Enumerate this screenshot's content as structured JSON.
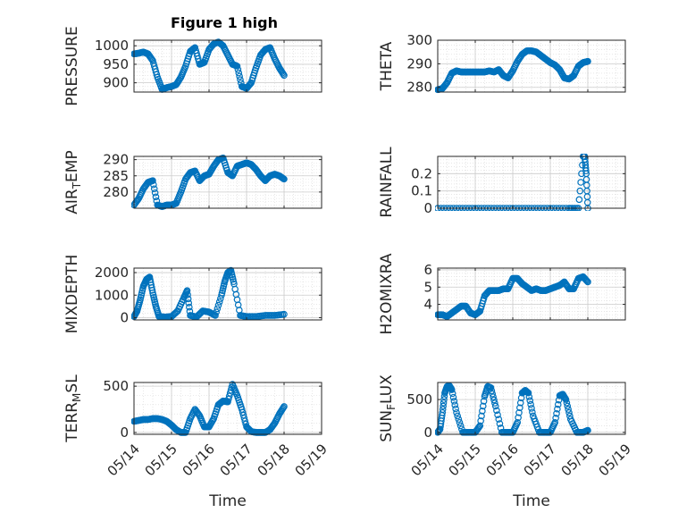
{
  "figure": {
    "title": "Figure 1 high"
  },
  "chart_data": [
    {
      "type": "scatter",
      "ylabel": "PRESSURE",
      "xlabel": "",
      "xlim": [
        "05/14",
        "05/19"
      ],
      "ylim": [
        875,
        1015
      ],
      "yticks": [
        900,
        950,
        1000
      ],
      "xtick_labels": [],
      "grid": true,
      "marker": "open circle",
      "color": "#0072BD",
      "x": [
        "05/14 00:00",
        "05/14 03:00",
        "05/14 06:00",
        "05/14 09:00",
        "05/14 12:00",
        "05/14 15:00",
        "05/14 18:00",
        "05/14 21:00",
        "05/15 00:00",
        "05/15 03:00",
        "05/15 06:00",
        "05/15 09:00",
        "05/15 12:00",
        "05/15 15:00",
        "05/15 18:00",
        "05/15 21:00",
        "05/16 00:00",
        "05/16 03:00",
        "05/16 06:00",
        "05/16 09:00",
        "05/16 12:00",
        "05/16 15:00",
        "05/16 18:00",
        "05/16 21:00",
        "05/17 00:00",
        "05/17 03:00",
        "05/17 06:00",
        "05/17 09:00",
        "05/17 12:00",
        "05/17 15:00",
        "05/17 18:00",
        "05/17 21:00",
        "05/18 00:00"
      ],
      "y": [
        978,
        980,
        983,
        978,
        960,
        915,
        882,
        887,
        890,
        895,
        915,
        945,
        985,
        995,
        950,
        955,
        990,
        1005,
        1010,
        1000,
        975,
        950,
        945,
        890,
        885,
        900,
        940,
        975,
        990,
        995,
        965,
        940,
        920
      ]
    },
    {
      "type": "scatter",
      "ylabel": "THETA",
      "xlabel": "",
      "xlim": [
        "05/14",
        "05/19"
      ],
      "ylim": [
        278,
        300
      ],
      "yticks": [
        280,
        290,
        300
      ],
      "xtick_labels": [],
      "grid": true,
      "marker": "open circle",
      "color": "#0072BD",
      "x": [
        "05/14 00:00",
        "05/14 03:00",
        "05/14 06:00",
        "05/14 09:00",
        "05/14 12:00",
        "05/14 15:00",
        "05/14 18:00",
        "05/14 21:00",
        "05/15 00:00",
        "05/15 03:00",
        "05/15 06:00",
        "05/15 09:00",
        "05/15 12:00",
        "05/15 15:00",
        "05/15 18:00",
        "05/15 21:00",
        "05/16 00:00",
        "05/16 03:00",
        "05/16 06:00",
        "05/16 09:00",
        "05/16 12:00",
        "05/16 15:00",
        "05/16 18:00",
        "05/16 21:00",
        "05/17 00:00",
        "05/17 03:00",
        "05/17 06:00",
        "05/17 09:00",
        "05/17 12:00",
        "05/17 15:00",
        "05/17 18:00",
        "05/17 21:00",
        "05/18 00:00"
      ],
      "y": [
        279,
        279.5,
        282,
        286,
        287,
        286.5,
        286.5,
        286.5,
        286.5,
        286.5,
        286.5,
        287,
        286.5,
        287.5,
        285,
        284,
        287,
        291,
        294,
        295.5,
        295.5,
        295,
        293.5,
        292,
        290.5,
        289.5,
        287.5,
        284,
        283.5,
        285,
        289,
        290.5,
        291
      ]
    },
    {
      "type": "scatter",
      "ylabel": "AIR_TEMP",
      "xlabel": "",
      "xlim": [
        "05/14",
        "05/19"
      ],
      "ylim": [
        275,
        291
      ],
      "yticks": [
        280,
        285,
        290
      ],
      "xtick_labels": [],
      "grid": true,
      "marker": "open circle",
      "color": "#0072BD",
      "x": [
        "05/14 00:00",
        "05/14 03:00",
        "05/14 06:00",
        "05/14 09:00",
        "05/14 12:00",
        "05/14 15:00",
        "05/14 18:00",
        "05/14 21:00",
        "05/15 00:00",
        "05/15 03:00",
        "05/15 06:00",
        "05/15 09:00",
        "05/15 12:00",
        "05/15 15:00",
        "05/15 18:00",
        "05/15 21:00",
        "05/16 00:00",
        "05/16 03:00",
        "05/16 06:00",
        "05/16 09:00",
        "05/16 12:00",
        "05/16 15:00",
        "05/16 18:00",
        "05/16 21:00",
        "05/17 00:00",
        "05/17 03:00",
        "05/17 06:00",
        "05/17 09:00",
        "05/17 12:00",
        "05/17 15:00",
        "05/17 18:00",
        "05/17 21:00",
        "05/18 00:00"
      ],
      "y": [
        276,
        278,
        281,
        283,
        283.5,
        276,
        275.5,
        276,
        276,
        276.5,
        280,
        284,
        286,
        286.5,
        283.5,
        285,
        285.5,
        288,
        290,
        290.5,
        286,
        285,
        288,
        288.5,
        289,
        288.5,
        287,
        285,
        283.5,
        285,
        285.5,
        285,
        284
      ]
    },
    {
      "type": "scatter",
      "ylabel": "RAINFALL",
      "xlabel": "",
      "xlim": [
        "05/14",
        "05/19"
      ],
      "ylim": [
        0,
        0.3
      ],
      "yticks": [
        0,
        0.1,
        0.2
      ],
      "xtick_labels": [],
      "grid": true,
      "marker": "open circle",
      "color": "#0072BD",
      "x": [
        "05/14 00:00",
        "05/14 12:00",
        "05/15 00:00",
        "05/15 12:00",
        "05/16 00:00",
        "05/16 12:00",
        "05/17 00:00",
        "05/17 12:00",
        "05/17 18:00",
        "05/17 21:00",
        "05/17 22:00",
        "05/17 23:00",
        "05/18 00:00"
      ],
      "y": [
        0,
        0,
        0,
        0,
        0,
        0,
        0,
        0,
        0,
        0.3,
        0.3,
        0.2,
        0
      ]
    },
    {
      "type": "scatter",
      "ylabel": "MIXDEPTH",
      "xlabel": "",
      "xlim": [
        "05/14",
        "05/19"
      ],
      "ylim": [
        -100,
        2200
      ],
      "yticks": [
        0,
        1000,
        2000
      ],
      "xtick_labels": [],
      "grid": true,
      "marker": "open circle",
      "color": "#0072BD",
      "x": [
        "05/14 00:00",
        "05/14 02:00",
        "05/14 04:00",
        "05/14 06:00",
        "05/14 08:00",
        "05/14 10:00",
        "05/14 12:00",
        "05/14 14:00",
        "05/14 16:00",
        "05/14 20:00",
        "05/15 00:00",
        "05/15 04:00",
        "05/15 08:00",
        "05/15 10:00",
        "05/15 12:00",
        "05/15 16:00",
        "05/15 20:00",
        "05/16 00:00",
        "05/16 04:00",
        "05/16 08:00",
        "05/16 10:00",
        "05/16 12:00",
        "05/16 14:00",
        "05/16 16:00",
        "05/16 20:00",
        "05/17 00:00",
        "05/17 06:00",
        "05/17 12:00",
        "05/17 18:00",
        "05/18 00:00"
      ],
      "y": [
        50,
        300,
        800,
        1400,
        1700,
        1800,
        1100,
        500,
        50,
        30,
        50,
        300,
        900,
        1200,
        100,
        30,
        300,
        250,
        100,
        1000,
        1600,
        2000,
        2100,
        1500,
        100,
        50,
        50,
        100,
        100,
        150
      ]
    },
    {
      "type": "scatter",
      "ylabel": "H2OMIXRA",
      "xlabel": "",
      "xlim": [
        "05/14",
        "05/19"
      ],
      "ylim": [
        3.1,
        6.1
      ],
      "yticks": [
        4,
        5,
        6
      ],
      "xtick_labels": [],
      "grid": true,
      "marker": "open circle",
      "color": "#0072BD",
      "x": [
        "05/14 00:00",
        "05/14 03:00",
        "05/14 06:00",
        "05/14 09:00",
        "05/14 12:00",
        "05/14 15:00",
        "05/14 18:00",
        "05/14 21:00",
        "05/15 00:00",
        "05/15 03:00",
        "05/15 06:00",
        "05/15 09:00",
        "05/15 12:00",
        "05/15 15:00",
        "05/15 18:00",
        "05/15 21:00",
        "05/16 00:00",
        "05/16 03:00",
        "05/16 06:00",
        "05/16 09:00",
        "05/16 12:00",
        "05/16 15:00",
        "05/16 18:00",
        "05/16 21:00",
        "05/17 00:00",
        "05/17 03:00",
        "05/17 06:00",
        "05/17 09:00",
        "05/17 12:00",
        "05/17 15:00",
        "05/17 18:00",
        "05/17 21:00",
        "05/18 00:00"
      ],
      "y": [
        3.4,
        3.4,
        3.3,
        3.5,
        3.7,
        3.9,
        3.9,
        3.5,
        3.4,
        3.6,
        4.5,
        4.8,
        4.8,
        4.8,
        4.9,
        4.9,
        5.5,
        5.5,
        5.2,
        5.0,
        4.8,
        4.9,
        4.8,
        4.8,
        4.9,
        5.0,
        5.1,
        5.3,
        4.9,
        4.9,
        5.5,
        5.6,
        5.3
      ]
    },
    {
      "type": "scatter",
      "ylabel": "TERR_MSL",
      "xlabel": "Time",
      "xlim": [
        "05/14",
        "05/19"
      ],
      "ylim": [
        -20,
        540
      ],
      "yticks": [
        0,
        500
      ],
      "xtick_labels": [
        "05/14",
        "05/15",
        "05/16",
        "05/17",
        "05/18",
        "05/19"
      ],
      "grid": true,
      "marker": "open circle",
      "color": "#0072BD",
      "x": [
        "05/14 00:00",
        "05/14 03:00",
        "05/14 06:00",
        "05/14 09:00",
        "05/14 12:00",
        "05/14 15:00",
        "05/14 18:00",
        "05/14 21:00",
        "05/15 00:00",
        "05/15 03:00",
        "05/15 06:00",
        "05/15 09:00",
        "05/15 12:00",
        "05/15 15:00",
        "05/15 18:00",
        "05/15 21:00",
        "05/16 00:00",
        "05/16 03:00",
        "05/16 06:00",
        "05/16 09:00",
        "05/16 12:00",
        "05/16 15:00",
        "05/16 18:00",
        "05/16 21:00",
        "05/17 00:00",
        "05/17 03:00",
        "05/17 06:00",
        "05/17 09:00",
        "05/17 12:00",
        "05/17 15:00",
        "05/17 18:00",
        "05/17 21:00",
        "05/18 00:00"
      ],
      "y": [
        120,
        130,
        140,
        140,
        150,
        150,
        140,
        120,
        80,
        30,
        0,
        0,
        150,
        250,
        180,
        60,
        60,
        150,
        300,
        340,
        330,
        520,
        400,
        250,
        60,
        10,
        0,
        0,
        0,
        30,
        100,
        200,
        280
      ]
    },
    {
      "type": "scatter",
      "ylabel": "SUN_FLUX",
      "xlabel": "Time",
      "xlim": [
        "05/14",
        "05/19"
      ],
      "ylim": [
        -30,
        760
      ],
      "yticks": [
        0,
        500
      ],
      "xtick_labels": [
        "05/14",
        "05/15",
        "05/16",
        "05/17",
        "05/18",
        "05/19"
      ],
      "grid": true,
      "marker": "open circle",
      "color": "#0072BD",
      "x": [
        "05/14 00:00",
        "05/14 01:30",
        "05/14 03:00",
        "05/14 04:30",
        "05/14 06:00",
        "05/14 07:30",
        "05/14 09:00",
        "05/14 12:00",
        "05/14 16:00",
        "05/14 20:00",
        "05/15 00:00",
        "05/15 03:00",
        "05/15 06:00",
        "05/15 08:00",
        "05/15 10:00",
        "05/15 13:00",
        "05/15 17:00",
        "05/15 21:00",
        "05/16 00:00",
        "05/16 03:00",
        "05/16 06:00",
        "05/16 08:00",
        "05/16 10:00",
        "05/16 13:00",
        "05/16 17:00",
        "05/16 21:00",
        "05/17 00:00",
        "05/17 03:00",
        "05/17 06:00",
        "05/17 08:00",
        "05/17 10:00",
        "05/17 13:00",
        "05/17 17:00",
        "05/17 21:00",
        "05/18 00:00"
      ],
      "y": [
        0,
        50,
        300,
        600,
        700,
        710,
        650,
        300,
        0,
        0,
        0,
        100,
        550,
        700,
        680,
        400,
        0,
        0,
        0,
        150,
        600,
        640,
        600,
        250,
        0,
        0,
        0,
        150,
        560,
        580,
        500,
        200,
        0,
        0,
        30
      ]
    }
  ]
}
